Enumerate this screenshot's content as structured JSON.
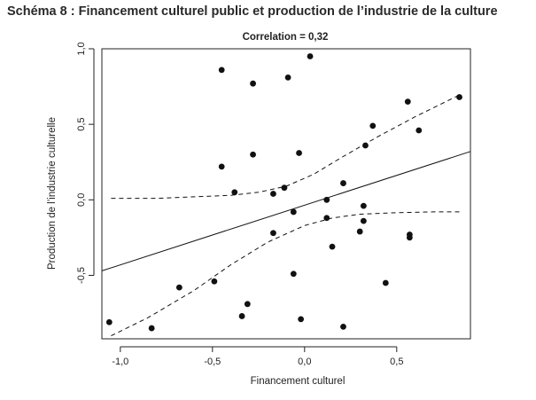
{
  "page_title": "Schéma 8 : Financement culturel public et production de l’industrie de la culture",
  "chart_data": {
    "type": "scatter",
    "subtitle": "Correlation = 0,32",
    "xlabel": "Financement culturel",
    "ylabel": "Production de l’industrie culturelle",
    "xlim": [
      -1.1,
      0.9
    ],
    "ylim": [
      -0.92,
      1.0
    ],
    "xticks": [
      {
        "value": -1.0,
        "label": "-1,0"
      },
      {
        "value": -0.5,
        "label": "-0,5"
      },
      {
        "value": 0.0,
        "label": "0,0"
      },
      {
        "value": 0.5,
        "label": "0,5"
      }
    ],
    "yticks": [
      {
        "value": -0.5,
        "label": "-0,5"
      },
      {
        "value": 0.0,
        "label": "0,0"
      },
      {
        "value": 0.5,
        "label": "0,5"
      },
      {
        "value": 1.0,
        "label": "1,0"
      }
    ],
    "grid": false,
    "points": [
      {
        "x": -1.06,
        "y": -0.81
      },
      {
        "x": -0.83,
        "y": -0.85
      },
      {
        "x": -0.68,
        "y": -0.58
      },
      {
        "x": -0.49,
        "y": -0.54
      },
      {
        "x": -0.45,
        "y": 0.86
      },
      {
        "x": -0.45,
        "y": 0.22
      },
      {
        "x": -0.38,
        "y": 0.05
      },
      {
        "x": -0.34,
        "y": -0.77
      },
      {
        "x": -0.31,
        "y": -0.69
      },
      {
        "x": -0.28,
        "y": 0.77
      },
      {
        "x": -0.28,
        "y": 0.3
      },
      {
        "x": -0.17,
        "y": 0.04
      },
      {
        "x": -0.17,
        "y": -0.22
      },
      {
        "x": -0.11,
        "y": 0.08
      },
      {
        "x": -0.09,
        "y": 0.81
      },
      {
        "x": -0.06,
        "y": -0.08
      },
      {
        "x": -0.06,
        "y": -0.49
      },
      {
        "x": -0.03,
        "y": 0.31
      },
      {
        "x": -0.02,
        "y": -0.79
      },
      {
        "x": 0.03,
        "y": 0.95
      },
      {
        "x": 0.12,
        "y": 0.0
      },
      {
        "x": 0.12,
        "y": -0.12
      },
      {
        "x": 0.15,
        "y": -0.31
      },
      {
        "x": 0.21,
        "y": 0.11
      },
      {
        "x": 0.21,
        "y": -0.84
      },
      {
        "x": 0.3,
        "y": -0.21
      },
      {
        "x": 0.32,
        "y": -0.14
      },
      {
        "x": 0.32,
        "y": -0.04
      },
      {
        "x": 0.33,
        "y": 0.36
      },
      {
        "x": 0.37,
        "y": 0.49
      },
      {
        "x": 0.44,
        "y": -0.55
      },
      {
        "x": 0.56,
        "y": 0.65
      },
      {
        "x": 0.57,
        "y": -0.25
      },
      {
        "x": 0.57,
        "y": -0.23
      },
      {
        "x": 0.62,
        "y": 0.46
      },
      {
        "x": 0.84,
        "y": 0.68
      }
    ],
    "regression_line": [
      {
        "x": -1.1,
        "y": -0.47
      },
      {
        "x": 0.9,
        "y": 0.32
      }
    ],
    "confidence_upper": [
      {
        "x": -1.05,
        "y": 0.01
      },
      {
        "x": -0.8,
        "y": 0.01
      },
      {
        "x": -0.6,
        "y": 0.02
      },
      {
        "x": -0.4,
        "y": 0.03
      },
      {
        "x": -0.25,
        "y": 0.05
      },
      {
        "x": -0.1,
        "y": 0.09
      },
      {
        "x": 0.05,
        "y": 0.17
      },
      {
        "x": 0.2,
        "y": 0.28
      },
      {
        "x": 0.4,
        "y": 0.42
      },
      {
        "x": 0.6,
        "y": 0.55
      },
      {
        "x": 0.85,
        "y": 0.7
      }
    ],
    "confidence_lower": [
      {
        "x": -1.05,
        "y": -0.9
      },
      {
        "x": -0.85,
        "y": -0.78
      },
      {
        "x": -0.6,
        "y": -0.6
      },
      {
        "x": -0.4,
        "y": -0.43
      },
      {
        "x": -0.2,
        "y": -0.28
      },
      {
        "x": 0.0,
        "y": -0.17
      },
      {
        "x": 0.15,
        "y": -0.12
      },
      {
        "x": 0.3,
        "y": -0.095
      },
      {
        "x": 0.5,
        "y": -0.085
      },
      {
        "x": 0.7,
        "y": -0.08
      },
      {
        "x": 0.85,
        "y": -0.08
      }
    ],
    "colors": {
      "points": "#111111",
      "lines": "#111111",
      "frame": "#222222"
    }
  }
}
